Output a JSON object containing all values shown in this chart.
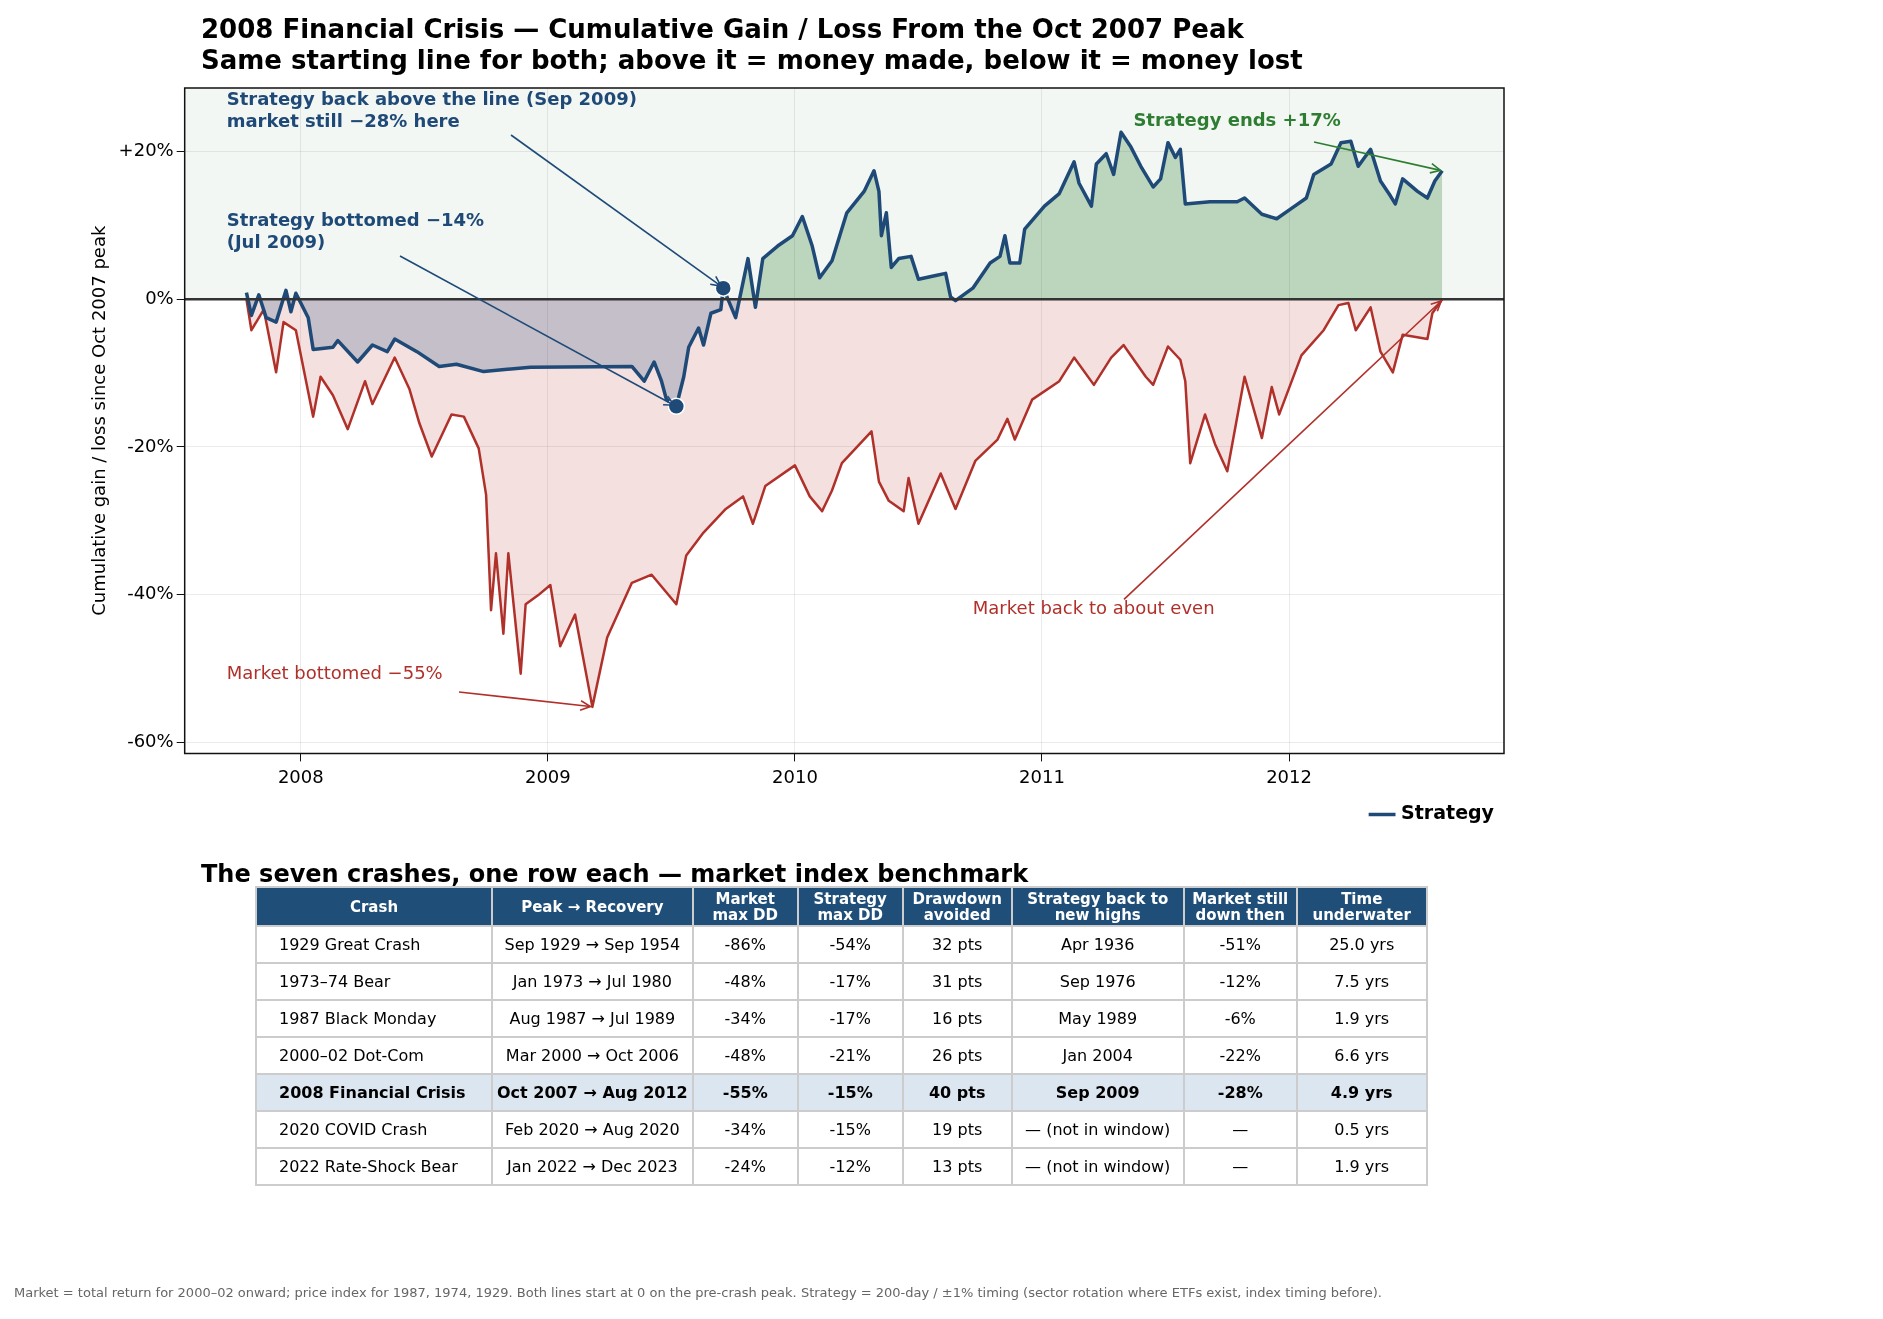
{
  "chart_data": [
    {
      "type": "area",
      "title": "2008 Financial Crisis — Cumulative Gain / Loss From the Oct 2007 Peak",
      "subtitle": "Same starting line for both; above it = money made, below it = money lost",
      "ylabel": "Cumulative gain / loss since Oct 2007 peak",
      "xlim": [
        2007.53,
        2012.87
      ],
      "xticks": [
        2008,
        2009,
        2010,
        2011,
        2012
      ],
      "ylim": [
        -61.5,
        28.6
      ],
      "yticks": [
        {
          "value": -60,
          "label": "-60%"
        },
        {
          "value": -40,
          "label": "-40%"
        },
        {
          "value": -20,
          "label": "-20%"
        },
        {
          "value": 0,
          "label": "0%"
        },
        {
          "value": 20,
          "label": "+20%"
        }
      ],
      "grid": true,
      "legend": "bottom right",
      "series": [
        {
          "color": "#b0302a",
          "x": [
            2007.78,
            2007.8,
            2007.85,
            2007.9,
            2007.93,
            2007.98,
            2008.05,
            2008.08,
            2008.13,
            2008.19,
            2008.26,
            2008.29,
            2008.38,
            2008.44,
            2008.48,
            2008.53,
            2008.61,
            2008.66,
            2008.72,
            2008.75,
            2008.77,
            2008.79,
            2008.82,
            2008.84,
            2008.89,
            2008.91,
            2008.96,
            2009.01,
            2009.05,
            2009.11,
            2009.18,
            2009.24,
            2009.34,
            2009.42,
            2009.52,
            2009.56,
            2009.63,
            2009.72,
            2009.79,
            2009.83,
            2009.88,
            2010.0,
            2010.06,
            2010.11,
            2010.15,
            2010.19,
            2010.31,
            2010.34,
            2010.38,
            2010.44,
            2010.46,
            2010.5,
            2010.59,
            2010.65,
            2010.73,
            2010.82,
            2010.86,
            2010.89,
            2010.96,
            2011.07,
            2011.13,
            2011.21,
            2011.28,
            2011.33,
            2011.42,
            2011.45,
            2011.51,
            2011.56,
            2011.58,
            2011.6,
            2011.66,
            2011.7,
            2011.75,
            2011.82,
            2011.89,
            2011.93,
            2011.96,
            2012.05,
            2012.14,
            2012.2,
            2012.24,
            2012.27,
            2012.33,
            2012.37,
            2012.42,
            2012.46,
            2012.56,
            2012.58,
            2012.62
          ],
          "values": [
            0,
            -4.2,
            -1.4,
            -9.9,
            -3.1,
            -4.2,
            -15.9,
            -10.5,
            -13,
            -17.6,
            -11.1,
            -14.2,
            -7.9,
            -12.2,
            -16.8,
            -21.3,
            -15.6,
            -15.9,
            -20.2,
            -26.5,
            -42.1,
            -34.4,
            -45.3,
            -34.4,
            -50.7,
            -41.3,
            -40.1,
            -38.7,
            -47,
            -42.7,
            -55.2,
            -45.8,
            -38.4,
            -37.3,
            -41.3,
            -34.7,
            -31.6,
            -28.4,
            -26.7,
            -30.4,
            -25.3,
            -22.5,
            -26.7,
            -28.7,
            -25.9,
            -22.2,
            -17.9,
            -24.7,
            -27.3,
            -28.7,
            -24.2,
            -30.4,
            -23.6,
            -28.4,
            -21.9,
            -19,
            -16.2,
            -19,
            -13.6,
            -11.1,
            -7.9,
            -11.6,
            -7.9,
            -6.2,
            -10.5,
            -11.6,
            -6.4,
            -8.2,
            -11.1,
            -22.2,
            -15.6,
            -19.6,
            -23.3,
            -10.5,
            -18.8,
            -11.9,
            -15.6,
            -7.6,
            -4.2,
            -0.8,
            -0.5,
            -4.2,
            -1.1,
            -7.1,
            -9.9,
            -4.8,
            -5.4,
            -1.9,
            0
          ]
        },
        {
          "name": "Strategy",
          "color": "#1f4a78",
          "x": [
            2007.78,
            2007.8,
            2007.83,
            2007.86,
            2007.9,
            2007.94,
            2007.96,
            2007.98,
            2008.03,
            2008.05,
            2008.13,
            2008.15,
            2008.23,
            2008.29,
            2008.35,
            2008.38,
            2008.47,
            2008.56,
            2008.63,
            2008.74,
            2008.93,
            2009.34,
            2009.39,
            2009.43,
            2009.46,
            2009.48,
            2009.52,
            2009.55,
            2009.57,
            2009.61,
            2009.63,
            2009.66,
            2009.7,
            2009.71,
            2009.76,
            2009.81,
            2009.84,
            2009.87,
            2009.93,
            2009.99,
            2010.03,
            2010.07,
            2010.1,
            2010.15,
            2010.21,
            2010.28,
            2010.32,
            2010.34,
            2010.35,
            2010.37,
            2010.39,
            2010.42,
            2010.47,
            2010.5,
            2010.57,
            2010.61,
            2010.63,
            2010.65,
            2010.72,
            2010.79,
            2010.83,
            2010.85,
            2010.87,
            2010.91,
            2010.93,
            2011.01,
            2011.07,
            2011.13,
            2011.15,
            2011.2,
            2011.22,
            2011.26,
            2011.29,
            2011.32,
            2011.36,
            2011.4,
            2011.45,
            2011.48,
            2011.51,
            2011.54,
            2011.56,
            2011.58,
            2011.68,
            2011.79,
            2011.82,
            2011.89,
            2011.95,
            2012.01,
            2012.07,
            2012.1,
            2012.17,
            2012.21,
            2012.25,
            2012.28,
            2012.33,
            2012.37,
            2012.41,
            2012.43,
            2012.46,
            2012.52,
            2012.56,
            2012.59,
            2012.62
          ],
          "values": [
            0.9,
            -2.2,
            0.6,
            -2.5,
            -3.1,
            1.2,
            -1.7,
            0.8,
            -2.5,
            -6.8,
            -6.5,
            -5.6,
            -8.5,
            -6.2,
            -7.1,
            -5.4,
            -7.1,
            -9.1,
            -8.8,
            -9.8,
            -9.2,
            -9.1,
            -11.1,
            -8.5,
            -11.1,
            -13.6,
            -14.5,
            -10.5,
            -6.5,
            -3.9,
            -6.2,
            -1.9,
            -1.4,
            1.5,
            -2.5,
            5.5,
            -1.1,
            5.5,
            7.2,
            8.6,
            11.2,
            7.2,
            2.9,
            5.2,
            11.7,
            14.6,
            17.4,
            14.6,
            8.6,
            11.7,
            4.3,
            5.5,
            5.8,
            2.7,
            3.2,
            3.5,
            0.3,
            -0.2,
            1.5,
            4.9,
            5.8,
            8.6,
            4.9,
            4.9,
            9.5,
            12.6,
            14.3,
            18.6,
            15.7,
            12.6,
            18.3,
            19.7,
            16.9,
            22.6,
            20.6,
            18,
            15.2,
            16.3,
            21.2,
            19.2,
            20.3,
            12.9,
            13.2,
            13.2,
            13.7,
            11.5,
            10.9,
            12.3,
            13.7,
            16.9,
            18.3,
            21.2,
            21.4,
            18,
            20.3,
            16,
            14,
            12.9,
            16.3,
            14.6,
            13.7,
            16,
            17.4
          ]
        },
        {
          "type": "scatter",
          "color": "#1f4a78",
          "marker": "circle",
          "x": [
            2009.52,
            2009.71
          ],
          "values": [
            -14.5,
            1.5
          ]
        }
      ],
      "ref_lines": [
        {
          "axis": "y",
          "value": 0,
          "color": "#333333"
        }
      ],
      "bands": [
        {
          "axis": "y",
          "from": 0,
          "to": 28.6,
          "color": "#2e7d32"
        }
      ],
      "annotations": [
        {
          "text": "Strategy back above the line (Sep 2009)\nmarket still −28% here",
          "x": 2009.71,
          "y": 1.5
        },
        {
          "text": "Strategy bottomed −14%\n(Jul 2009)",
          "x": 2009.52,
          "y": -14.5
        },
        {
          "text": "Market bottomed −55%",
          "x": 2009.18,
          "y": -55.2
        },
        {
          "text": "Market back to about even",
          "x": 2012.62,
          "y": 0
        },
        {
          "text": "Strategy ends +17%",
          "x": 2012.62,
          "y": 17.4
        }
      ]
    },
    {
      "type": "other",
      "title": "The seven crashes, one row each — market index benchmark",
      "categories": [
        "Crash",
        "Peak → Recovery",
        "Market max DD",
        "Strategy max DD",
        "Drawdown avoided",
        "Strategy back to new highs",
        "Market still down then",
        "Time underwater"
      ],
      "y_categories": [
        "1929 Great Crash",
        "1973–74 Bear",
        "1987 Black Monday",
        "2000–02 Dot-Com",
        "2008 Financial Crisis",
        "2020 COVID Crash",
        "2022 Rate-Shock Bear"
      ],
      "cell_labels": [
        [
          "Sep 1929 → Sep 1954",
          "-86%",
          "-54%",
          "32 pts",
          "Apr 1936",
          "-51%",
          "25.0 yrs"
        ],
        [
          "Jan 1973 → Jul 1980",
          "-48%",
          "-17%",
          "31 pts",
          "Sep 1976",
          "-12%",
          "7.5 yrs"
        ],
        [
          "Aug 1987 → Jul 1989",
          "-34%",
          "-17%",
          "16 pts",
          "May 1989",
          "-6%",
          "1.9 yrs"
        ],
        [
          "Mar 2000 → Oct 2006",
          "-48%",
          "-21%",
          "26 pts",
          "Jan 2004",
          "-22%",
          "6.6 yrs"
        ],
        [
          "Oct 2007 → Aug 2012",
          "-55%",
          "-15%",
          "40 pts",
          "Sep 2009",
          "-28%",
          "4.9 yrs"
        ],
        [
          "Feb 2020 → Aug 2020",
          "-34%",
          "-15%",
          "19 pts",
          "— (not in window)",
          "—",
          "0.5 yrs"
        ],
        [
          "Jan 2022 → Dec 2023",
          "-24%",
          "-12%",
          "13 pts",
          "— (not in window)",
          "—",
          "1.9 yrs"
        ]
      ],
      "annotations": [
        "Market = total return for 2000–02 onward; price index for 1987, 1974, 1929.  Both lines start at 0 on the pre-crash peak.  Strategy = 200-day / ±1% timing (sector rotation where ETFs exist, index timing before)."
      ]
    }
  ]
}
